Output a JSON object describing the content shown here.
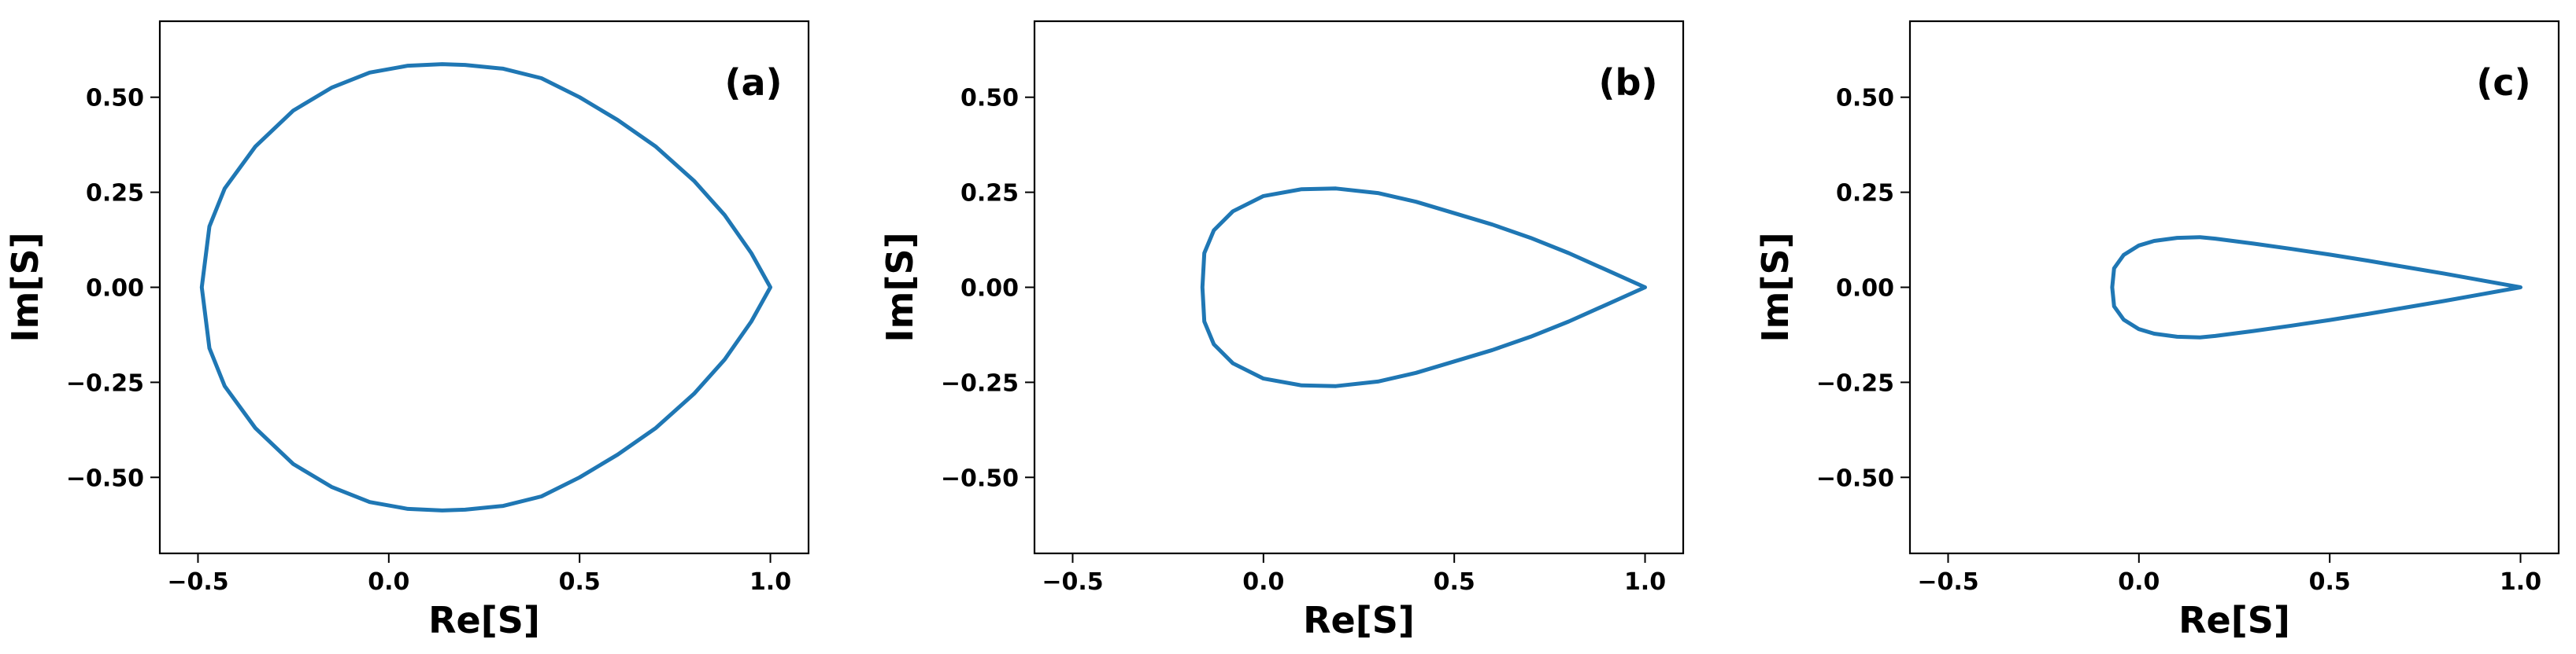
{
  "chart_data": [
    {
      "type": "line",
      "annotation": "(a)",
      "xlabel": "Re[S]",
      "ylabel": "Im[S]",
      "xlim": [
        -0.6,
        1.1
      ],
      "ylim": [
        -0.7,
        0.7
      ],
      "x_ticks": [
        -0.5,
        0.0,
        0.5,
        1.0
      ],
      "x_tick_labels": [
        "−0.5",
        "0.0",
        "0.5",
        "1.0"
      ],
      "y_ticks": [
        0.5,
        0.25,
        0.0,
        -0.25,
        -0.5
      ],
      "y_tick_labels": [
        "0.50",
        "0.25",
        "0.00",
        "−0.25",
        "−0.50"
      ],
      "grid": false,
      "color": "#1f77b4",
      "series": [
        {
          "x": [
            1.0,
            0.95,
            0.88,
            0.8,
            0.7,
            0.6,
            0.5,
            0.4,
            0.3,
            0.2,
            0.14,
            0.05,
            -0.05,
            -0.15,
            -0.25,
            -0.35,
            -0.43,
            -0.47,
            -0.49,
            -0.47,
            -0.43,
            -0.35,
            -0.25,
            -0.15,
            -0.05,
            0.05,
            0.14,
            0.2,
            0.3,
            0.4,
            0.5,
            0.6,
            0.7,
            0.8,
            0.88,
            0.95,
            1.0
          ],
          "y": [
            0.0,
            0.09,
            0.19,
            0.28,
            0.37,
            0.44,
            0.5,
            0.55,
            0.575,
            0.585,
            0.587,
            0.583,
            0.565,
            0.525,
            0.465,
            0.37,
            0.26,
            0.16,
            0.0,
            -0.16,
            -0.26,
            -0.37,
            -0.465,
            -0.525,
            -0.565,
            -0.583,
            -0.587,
            -0.585,
            -0.575,
            -0.55,
            -0.5,
            -0.44,
            -0.37,
            -0.28,
            -0.19,
            -0.09,
            0.0
          ]
        }
      ]
    },
    {
      "type": "line",
      "annotation": "(b)",
      "xlabel": "Re[S]",
      "ylabel": "Im[S]",
      "xlim": [
        -0.6,
        1.1
      ],
      "ylim": [
        -0.7,
        0.7
      ],
      "x_ticks": [
        -0.5,
        0.0,
        0.5,
        1.0
      ],
      "x_tick_labels": [
        "−0.5",
        "0.0",
        "0.5",
        "1.0"
      ],
      "y_ticks": [
        0.5,
        0.25,
        0.0,
        -0.25,
        -0.5
      ],
      "y_tick_labels": [
        "0.50",
        "0.25",
        "0.00",
        "−0.25",
        "−0.50"
      ],
      "grid": false,
      "color": "#1f77b4",
      "series": [
        {
          "x": [
            1.0,
            0.9,
            0.8,
            0.7,
            0.6,
            0.5,
            0.4,
            0.3,
            0.19,
            0.1,
            0.0,
            -0.08,
            -0.13,
            -0.155,
            -0.16,
            -0.155,
            -0.13,
            -0.08,
            0.0,
            0.1,
            0.19,
            0.3,
            0.4,
            0.5,
            0.6,
            0.7,
            0.8,
            0.9,
            1.0
          ],
          "y": [
            0.0,
            0.045,
            0.09,
            0.13,
            0.165,
            0.195,
            0.225,
            0.248,
            0.26,
            0.258,
            0.24,
            0.2,
            0.15,
            0.09,
            0.0,
            -0.09,
            -0.15,
            -0.2,
            -0.24,
            -0.258,
            -0.26,
            -0.248,
            -0.225,
            -0.195,
            -0.165,
            -0.13,
            -0.09,
            -0.045,
            0.0
          ]
        }
      ]
    },
    {
      "type": "line",
      "annotation": "(c)",
      "xlabel": "Re[S]",
      "ylabel": "Im[S]",
      "xlim": [
        -0.6,
        1.1
      ],
      "ylim": [
        -0.7,
        0.7
      ],
      "x_ticks": [
        -0.5,
        0.0,
        0.5,
        1.0
      ],
      "x_tick_labels": [
        "−0.5",
        "0.0",
        "0.5",
        "1.0"
      ],
      "y_ticks": [
        0.5,
        0.25,
        0.0,
        -0.25,
        -0.5
      ],
      "y_tick_labels": [
        "0.50",
        "0.25",
        "0.00",
        "−0.25",
        "−0.50"
      ],
      "grid": false,
      "color": "#1f77b4",
      "series": [
        {
          "x": [
            1.0,
            0.9,
            0.8,
            0.7,
            0.6,
            0.5,
            0.4,
            0.3,
            0.2,
            0.16,
            0.1,
            0.04,
            0.0,
            -0.04,
            -0.065,
            -0.07,
            -0.065,
            -0.04,
            0.0,
            0.04,
            0.1,
            0.16,
            0.2,
            0.3,
            0.4,
            0.5,
            0.6,
            0.7,
            0.8,
            0.9,
            1.0
          ],
          "y": [
            0.0,
            0.018,
            0.036,
            0.053,
            0.07,
            0.086,
            0.101,
            0.115,
            0.128,
            0.132,
            0.13,
            0.122,
            0.11,
            0.085,
            0.05,
            0.0,
            -0.05,
            -0.085,
            -0.11,
            -0.122,
            -0.13,
            -0.132,
            -0.128,
            -0.115,
            -0.101,
            -0.086,
            -0.07,
            -0.053,
            -0.036,
            -0.018,
            0.0
          ]
        }
      ]
    }
  ]
}
